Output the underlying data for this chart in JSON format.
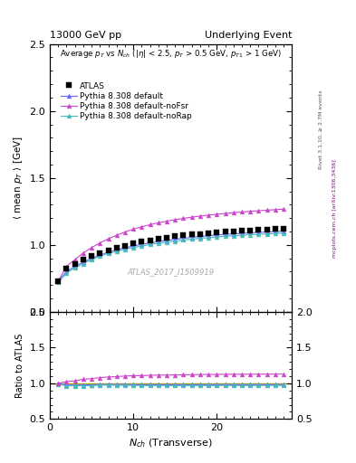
{
  "title_left": "13000 GeV pp",
  "title_right": "Underlying Event",
  "ylabel_main": "\\langle mean p_T \\rangle [GeV]",
  "ylabel_ratio": "Ratio to ATLAS",
  "xlabel": "N_{ch} (Transverse)",
  "right_label_top": "Rivet 3.1.10, ≥ 2.7M events",
  "right_label_bottom": "mcplots.cern.ch [arXiv:1306.3436]",
  "watermark": "ATLAS_2017_I1509919",
  "ylim_main": [
    0.5,
    2.5
  ],
  "ylim_ratio": [
    0.5,
    2.0
  ],
  "yticks_main": [
    0.5,
    1.0,
    1.5,
    2.0,
    2.5
  ],
  "yticks_ratio": [
    0.5,
    1.0,
    1.5,
    2.0
  ],
  "nch": [
    1,
    2,
    3,
    4,
    5,
    6,
    7,
    8,
    9,
    10,
    11,
    12,
    13,
    14,
    15,
    16,
    17,
    18,
    19,
    20,
    21,
    22,
    23,
    24,
    25,
    26,
    27,
    28
  ],
  "atlas_y": [
    0.73,
    0.82,
    0.86,
    0.89,
    0.92,
    0.94,
    0.96,
    0.98,
    0.995,
    1.01,
    1.025,
    1.035,
    1.045,
    1.055,
    1.063,
    1.07,
    1.077,
    1.082,
    1.088,
    1.093,
    1.097,
    1.102,
    1.106,
    1.11,
    1.113,
    1.116,
    1.119,
    1.122
  ],
  "pythia_default_y": [
    0.73,
    0.8,
    0.84,
    0.87,
    0.9,
    0.925,
    0.945,
    0.963,
    0.978,
    0.992,
    1.004,
    1.015,
    1.025,
    1.034,
    1.042,
    1.049,
    1.056,
    1.062,
    1.068,
    1.073,
    1.078,
    1.082,
    1.086,
    1.09,
    1.093,
    1.096,
    1.099,
    1.102
  ],
  "pythia_noFsr_y": [
    0.73,
    0.84,
    0.89,
    0.94,
    0.98,
    1.015,
    1.045,
    1.072,
    1.096,
    1.117,
    1.135,
    1.151,
    1.165,
    1.177,
    1.188,
    1.198,
    1.207,
    1.215,
    1.222,
    1.229,
    1.235,
    1.241,
    1.246,
    1.251,
    1.255,
    1.259,
    1.263,
    1.267
  ],
  "pythia_noRap_y": [
    0.72,
    0.79,
    0.83,
    0.86,
    0.89,
    0.915,
    0.935,
    0.952,
    0.967,
    0.98,
    0.992,
    1.003,
    1.013,
    1.021,
    1.029,
    1.036,
    1.043,
    1.049,
    1.054,
    1.059,
    1.064,
    1.068,
    1.072,
    1.076,
    1.079,
    1.082,
    1.085,
    1.088
  ],
  "color_atlas": "#000000",
  "color_default": "#6666ff",
  "color_noFsr": "#cc44cc",
  "color_noRap": "#44bbbb",
  "color_refline": "#aaaa00",
  "legend_labels": [
    "ATLAS",
    "Pythia 8.308 default",
    "Pythia 8.308 default-noFsr",
    "Pythia 8.308 default-noRap"
  ],
  "bg_color": "#ffffff"
}
